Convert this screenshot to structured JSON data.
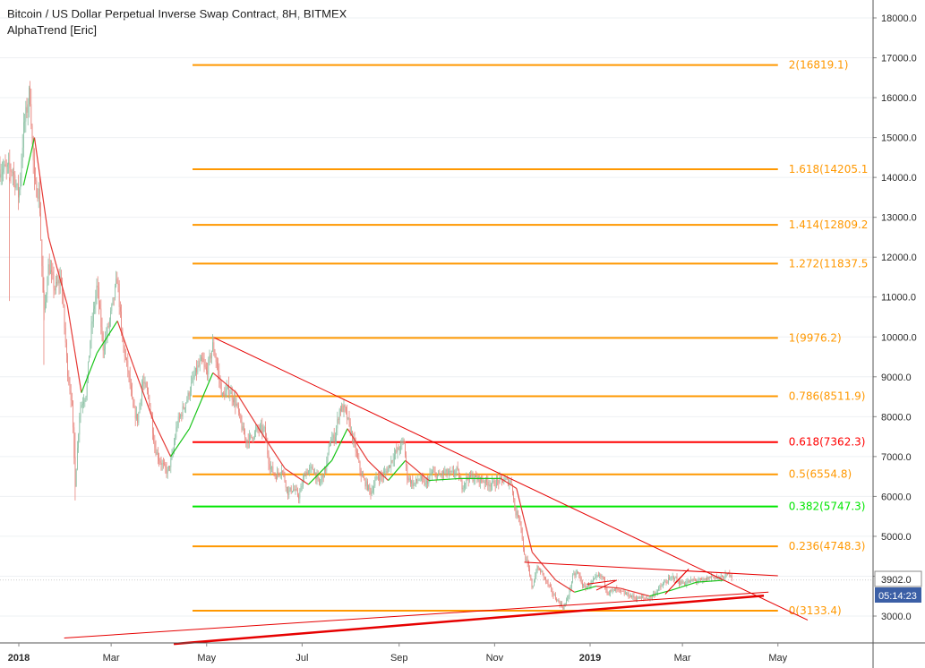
{
  "header": {
    "title": "Bitcoin / US Dollar Perpetual Inverse Swap Contract, 8H, BITMEX",
    "indicator": "AlphaTrend [Eric]"
  },
  "price_badges": {
    "last_price": "3902.0",
    "countdown": "05:14:23"
  },
  "colors": {
    "fib_default": "#ff9800",
    "fib_golden": "#ff0000",
    "fib_green": "#00e600",
    "trendline": "#e60000",
    "candle_up": "#8cc1a5",
    "candle_down": "#e8857d",
    "alphatrend_up": "#17c417",
    "alphatrend_down": "#e53935",
    "countdown_badge": "#3b5fa6",
    "price_badge": "#ffffff"
  },
  "chart_data": {
    "type": "candlestick",
    "title": "Bitcoin / US Dollar Perpetual Inverse Swap Contract, 8H, BITMEX",
    "x_axis": {
      "tick_labels": [
        "2018",
        "Mar",
        "May",
        "Jul",
        "Sep",
        "Nov",
        "2019",
        "Mar",
        "May"
      ],
      "range": [
        "2017-12-28",
        "2019-05-28"
      ]
    },
    "y_axis": {
      "side": "right",
      "range": [
        2300,
        18500
      ],
      "tick_labels": [
        "18000.0",
        "17000.0",
        "16000.0",
        "15000.0",
        "14000.0",
        "13000.0",
        "12000.0",
        "11000.0",
        "10000.0",
        "9000.0",
        "8000.0",
        "7000.0",
        "6000.0",
        "5000.0",
        "4000.0",
        "3000.0"
      ],
      "ticks": [
        18000,
        17000,
        16000,
        15000,
        14000,
        13000,
        12000,
        11000,
        10000,
        9000,
        8000,
        7000,
        6000,
        5000,
        4000,
        3000
      ]
    },
    "grid": "horizontal",
    "fibonacci_retracement": {
      "start": "2018-04-22",
      "end": "2019-05-01",
      "levels": [
        {
          "label": "2(16819.1)",
          "price": 16819.1,
          "style": "default"
        },
        {
          "label": "1.618(14205.1",
          "price": 14205.1,
          "style": "default"
        },
        {
          "label": "1.414(12809.2",
          "price": 12809.2,
          "style": "default"
        },
        {
          "label": "1.272(11837.5",
          "price": 11837.5,
          "style": "default"
        },
        {
          "label": "1(9976.2)",
          "price": 9976.2,
          "style": "default"
        },
        {
          "label": "0.786(8511.9)",
          "price": 8511.9,
          "style": "default"
        },
        {
          "label": "0.618(7362.3)",
          "price": 7362.3,
          "style": "golden"
        },
        {
          "label": "0.5(6554.8)",
          "price": 6554.8,
          "style": "default"
        },
        {
          "label": "0.382(5747.3)",
          "price": 5747.3,
          "style": "green"
        },
        {
          "label": "0.236(4748.3)",
          "price": 4748.3,
          "style": "default"
        },
        {
          "label": "0(3133.4)",
          "price": 3133.4,
          "style": "default"
        }
      ]
    },
    "price_path": [
      [
        "2017-12-28",
        14200
      ],
      [
        "2018-01-01",
        13500
      ],
      [
        "2018-01-04",
        15200
      ],
      [
        "2018-01-08",
        16200
      ],
      [
        "2018-01-11",
        13800
      ],
      [
        "2018-01-14",
        13600
      ],
      [
        "2018-01-17",
        10500
      ],
      [
        "2018-01-20",
        11800
      ],
      [
        "2018-01-24",
        11200
      ],
      [
        "2018-01-28",
        11500
      ],
      [
        "2018-02-01",
        9200
      ],
      [
        "2018-02-04",
        8300
      ],
      [
        "2018-02-06",
        6300
      ],
      [
        "2018-02-09",
        8200
      ],
      [
        "2018-02-13",
        8600
      ],
      [
        "2018-02-16",
        10100
      ],
      [
        "2018-02-20",
        11300
      ],
      [
        "2018-02-24",
        9700
      ],
      [
        "2018-02-28",
        10400
      ],
      [
        "2018-03-05",
        11500
      ],
      [
        "2018-03-08",
        9900
      ],
      [
        "2018-03-12",
        9100
      ],
      [
        "2018-03-15",
        8200
      ],
      [
        "2018-03-18",
        7900
      ],
      [
        "2018-03-21",
        8900
      ],
      [
        "2018-03-25",
        8500
      ],
      [
        "2018-03-29",
        7200
      ],
      [
        "2018-04-01",
        6900
      ],
      [
        "2018-04-06",
        6600
      ],
      [
        "2018-04-09",
        7000
      ],
      [
        "2018-04-12",
        7800
      ],
      [
        "2018-04-15",
        8100
      ],
      [
        "2018-04-19",
        8500
      ],
      [
        "2018-04-22",
        8900
      ],
      [
        "2018-04-25",
        9200
      ],
      [
        "2018-04-28",
        9400
      ],
      [
        "2018-05-01",
        9100
      ],
      [
        "2018-05-05",
        9800
      ],
      [
        "2018-05-08",
        9200
      ],
      [
        "2018-05-11",
        8500
      ],
      [
        "2018-05-15",
        8700
      ],
      [
        "2018-05-20",
        8300
      ],
      [
        "2018-05-23",
        7800
      ],
      [
        "2018-05-26",
        7400
      ],
      [
        "2018-05-30",
        7500
      ],
      [
        "2018-06-03",
        7700
      ],
      [
        "2018-06-07",
        7650
      ],
      [
        "2018-06-10",
        6800
      ],
      [
        "2018-06-14",
        6500
      ],
      [
        "2018-06-18",
        6700
      ],
      [
        "2018-06-22",
        6100
      ],
      [
        "2018-06-25",
        6200
      ],
      [
        "2018-06-29",
        6000
      ],
      [
        "2018-07-03",
        6600
      ],
      [
        "2018-07-08",
        6700
      ],
      [
        "2018-07-12",
        6300
      ],
      [
        "2018-07-16",
        6700
      ],
      [
        "2018-07-19",
        7400
      ],
      [
        "2018-07-22",
        7500
      ],
      [
        "2018-07-25",
        8200
      ],
      [
        "2018-07-28",
        8200
      ],
      [
        "2018-07-31",
        7800
      ],
      [
        "2018-08-04",
        7200
      ],
      [
        "2018-08-08",
        6500
      ],
      [
        "2018-08-11",
        6300
      ],
      [
        "2018-08-14",
        6100
      ],
      [
        "2018-08-18",
        6500
      ],
      [
        "2018-08-21",
        6500
      ],
      [
        "2018-08-25",
        6700
      ],
      [
        "2018-08-28",
        7000
      ],
      [
        "2018-09-01",
        7200
      ],
      [
        "2018-09-04",
        7400
      ],
      [
        "2018-09-06",
        6500
      ],
      [
        "2018-09-10",
        6300
      ],
      [
        "2018-09-14",
        6450
      ],
      [
        "2018-09-18",
        6300
      ],
      [
        "2018-09-22",
        6600
      ],
      [
        "2018-09-26",
        6500
      ],
      [
        "2018-09-30",
        6600
      ],
      [
        "2018-10-04",
        6550
      ],
      [
        "2018-10-08",
        6650
      ],
      [
        "2018-10-11",
        6250
      ],
      [
        "2018-10-15",
        6500
      ],
      [
        "2018-10-20",
        6450
      ],
      [
        "2018-10-25",
        6400
      ],
      [
        "2018-10-30",
        6300
      ],
      [
        "2018-11-04",
        6400
      ],
      [
        "2018-11-08",
        6400
      ],
      [
        "2018-11-12",
        6350
      ],
      [
        "2018-11-14",
        5600
      ],
      [
        "2018-11-17",
        5500
      ],
      [
        "2018-11-20",
        4500
      ],
      [
        "2018-11-22",
        4300
      ],
      [
        "2018-11-25",
        3700
      ],
      [
        "2018-11-28",
        4200
      ],
      [
        "2018-12-01",
        4100
      ],
      [
        "2018-12-05",
        3800
      ],
      [
        "2018-12-09",
        3500
      ],
      [
        "2018-12-13",
        3300
      ],
      [
        "2018-12-15",
        3200
      ],
      [
        "2018-12-18",
        3500
      ],
      [
        "2018-12-21",
        4000
      ],
      [
        "2018-12-24",
        4100
      ],
      [
        "2018-12-28",
        3700
      ],
      [
        "2019-01-01",
        3800
      ],
      [
        "2019-01-06",
        4000
      ],
      [
        "2019-01-09",
        3980
      ],
      [
        "2019-01-12",
        3600
      ],
      [
        "2019-01-18",
        3650
      ],
      [
        "2019-01-24",
        3550
      ],
      [
        "2019-01-30",
        3450
      ],
      [
        "2019-02-04",
        3450
      ],
      [
        "2019-02-08",
        3450
      ],
      [
        "2019-02-12",
        3600
      ],
      [
        "2019-02-18",
        3850
      ],
      [
        "2019-02-24",
        4000
      ],
      [
        "2019-02-26",
        3850
      ],
      [
        "2019-03-02",
        3820
      ],
      [
        "2019-03-08",
        3900
      ],
      [
        "2019-03-14",
        3880
      ],
      [
        "2019-03-20",
        4000
      ],
      [
        "2019-03-25",
        3950
      ],
      [
        "2019-03-28",
        3990
      ],
      [
        "2019-03-30",
        4050
      ],
      [
        "2019-04-01",
        4060
      ],
      [
        "2019-04-02",
        3902
      ]
    ],
    "alphatrend_path": [
      [
        "2018-01-04",
        13800
      ],
      [
        "2018-01-11",
        15000
      ],
      [
        "2018-01-20",
        12500
      ],
      [
        "2018-02-01",
        10800
      ],
      [
        "2018-02-10",
        8600
      ],
      [
        "2018-02-20",
        9600
      ],
      [
        "2018-03-05",
        10400
      ],
      [
        "2018-03-15",
        9300
      ],
      [
        "2018-03-28",
        7900
      ],
      [
        "2018-04-08",
        7000
      ],
      [
        "2018-04-20",
        7700
      ],
      [
        "2018-05-05",
        9100
      ],
      [
        "2018-05-20",
        8600
      ],
      [
        "2018-06-05",
        7600
      ],
      [
        "2018-06-20",
        6700
      ],
      [
        "2018-07-05",
        6300
      ],
      [
        "2018-07-20",
        6900
      ],
      [
        "2018-07-30",
        7700
      ],
      [
        "2018-08-12",
        6900
      ],
      [
        "2018-08-25",
        6400
      ],
      [
        "2018-09-05",
        6900
      ],
      [
        "2018-09-20",
        6400
      ],
      [
        "2018-10-10",
        6450
      ],
      [
        "2018-11-05",
        6450
      ],
      [
        "2018-11-15",
        6200
      ],
      [
        "2018-11-25",
        4600
      ],
      [
        "2018-12-10",
        3900
      ],
      [
        "2018-12-22",
        3600
      ],
      [
        "2019-01-05",
        3750
      ],
      [
        "2019-01-20",
        3700
      ],
      [
        "2019-02-08",
        3500
      ],
      [
        "2019-02-22",
        3650
      ],
      [
        "2019-03-10",
        3850
      ],
      [
        "2019-03-28",
        3900
      ]
    ],
    "trendlines": [
      {
        "name": "down",
        "from": [
          "2018-05-06",
          9976
        ],
        "to": [
          "2019-05-20",
          2900
        ],
        "width": 1
      },
      {
        "name": "support-thin",
        "from": [
          "2018-01-30",
          2450
        ],
        "to": [
          "2019-04-25",
          3600
        ],
        "width": 1
      },
      {
        "name": "support-thick",
        "from": [
          "2018-04-10",
          2300
        ],
        "to": [
          "2019-04-22",
          3510
        ],
        "width": 2.5
      },
      {
        "name": "upper",
        "from": [
          "2018-11-20",
          4350
        ],
        "to": [
          "2019-05-01",
          4010
        ],
        "width": 1
      },
      {
        "name": "pennant-1",
        "from": [
          "2018-12-30",
          3800
        ],
        "to": [
          "2019-01-18",
          3900
        ],
        "width": 1
      },
      {
        "name": "pennant-2",
        "from": [
          "2019-01-05",
          3650
        ],
        "to": [
          "2019-01-18",
          3900
        ],
        "width": 1
      },
      {
        "name": "pennant-3",
        "from": [
          "2019-02-24",
          3820
        ],
        "to": [
          "2019-03-05",
          4180
        ],
        "width": 1
      },
      {
        "name": "pennant-4",
        "from": [
          "2019-02-18",
          3550
        ],
        "to": [
          "2019-03-05",
          4180
        ],
        "width": 1
      }
    ]
  }
}
